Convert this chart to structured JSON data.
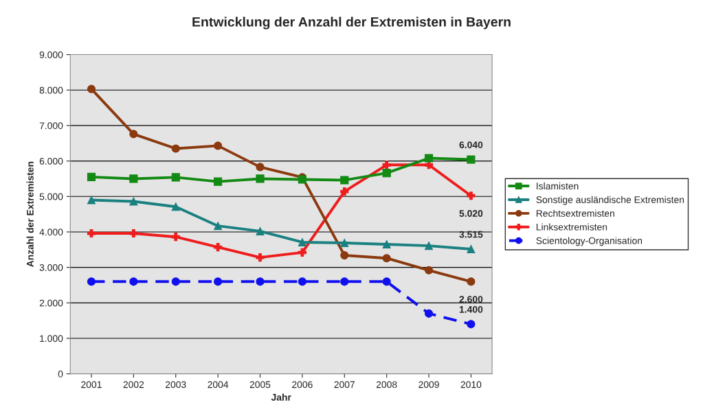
{
  "chart_data": {
    "type": "line",
    "title": "Entwicklung der Anzahl der Extremisten in Bayern",
    "xlabel": "Jahr",
    "ylabel": "Anzahl der Extremisten",
    "categories": [
      "2001",
      "2002",
      "2003",
      "2004",
      "2005",
      "2006",
      "2007",
      "2008",
      "2009",
      "2010"
    ],
    "series": [
      {
        "name": "Islamisten",
        "color": "#138a13",
        "marker": "square",
        "line_style": "solid",
        "values": [
          5550,
          5500,
          5540,
          5420,
          5500,
          5480,
          5460,
          5660,
          6080,
          6040
        ]
      },
      {
        "name": "Sonstige ausländische Extremisten",
        "color": "#1a8080",
        "marker": "triangle",
        "line_style": "solid",
        "values": [
          4900,
          4860,
          4710,
          4170,
          4020,
          3710,
          3690,
          3650,
          3610,
          3515
        ]
      },
      {
        "name": "Rechtsextremisten",
        "color": "#8b3a0f",
        "marker": "circle",
        "line_style": "solid",
        "values": [
          8030,
          6760,
          6350,
          6430,
          5830,
          5540,
          3340,
          3260,
          2920,
          2600
        ]
      },
      {
        "name": "Linksextremisten",
        "color": "#ee1c1c",
        "marker": "cross",
        "line_style": "solid",
        "values": [
          3960,
          3960,
          3860,
          3570,
          3280,
          3420,
          5140,
          5890,
          5890,
          5020
        ]
      },
      {
        "name": "Scientology-Organisation",
        "color": "#1010ee",
        "marker": "circle",
        "line_style": "dashed",
        "values": [
          2600,
          2600,
          2600,
          2600,
          2600,
          2600,
          2600,
          2600,
          1700,
          1400
        ]
      }
    ],
    "annotations": [
      {
        "text": "6.040",
        "x": "2010",
        "y": 6040
      },
      {
        "text": "5.020",
        "x": "2010",
        "y": 5020
      },
      {
        "text": "3.515",
        "x": "2010",
        "y": 3515
      },
      {
        "text": "2.600",
        "x": "2010",
        "y": 2600
      },
      {
        "text": "1.400",
        "x": "2010",
        "y": 1400
      }
    ],
    "ylim": [
      0,
      9000
    ],
    "yticks": [
      {
        "value": 0,
        "label": "0"
      },
      {
        "value": 1000,
        "label": "1.000"
      },
      {
        "value": 2000,
        "label": "2.000"
      },
      {
        "value": 3000,
        "label": "3.000"
      },
      {
        "value": 4000,
        "label": "4.000"
      },
      {
        "value": 5000,
        "label": "5.000"
      },
      {
        "value": 6000,
        "label": "6.000"
      },
      {
        "value": 7000,
        "label": "7.000"
      },
      {
        "value": 8000,
        "label": "8.000"
      },
      {
        "value": 9000,
        "label": "9.000"
      }
    ],
    "grid": "y",
    "legend": "right"
  }
}
